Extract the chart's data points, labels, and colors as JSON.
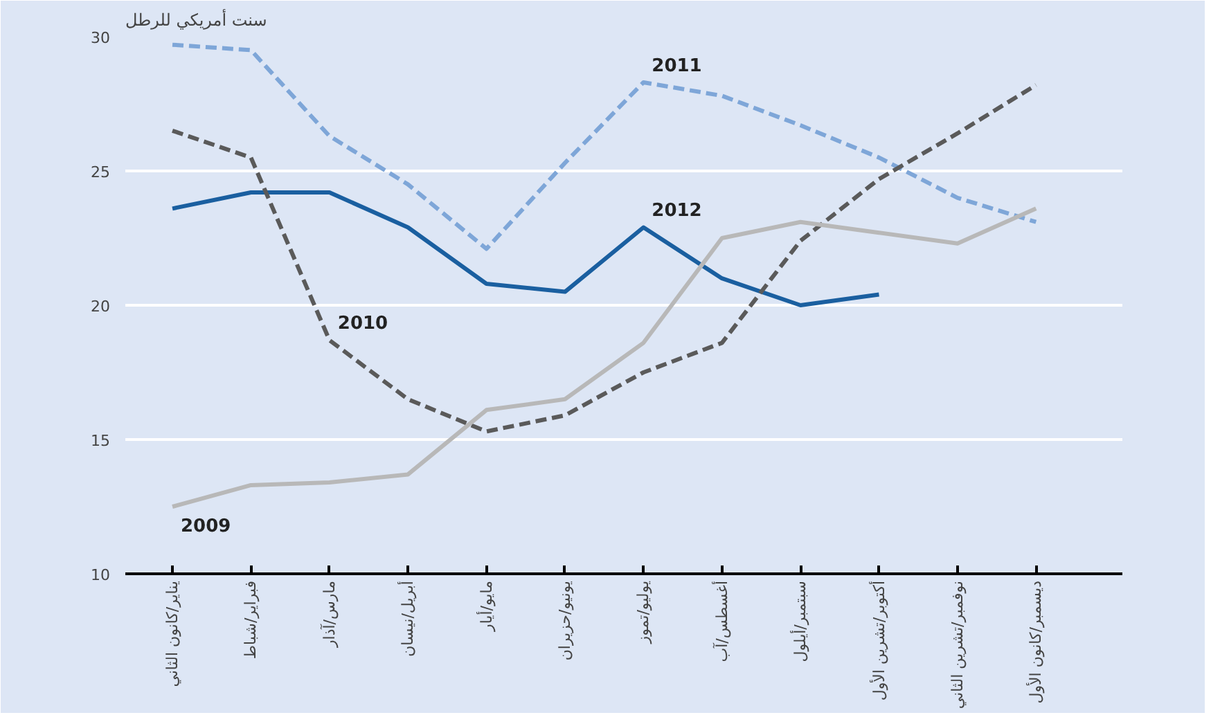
{
  "chart_data": {
    "type": "line",
    "ylabel": "سنت أمريكي للرطل",
    "categories": [
      "يناير/كانون الثاني",
      "فبراير/شباط",
      "مارس/آذار",
      "أبريل/نيسان",
      "مايو/أيار",
      "يونيو/حزيران",
      "يوليو/تموز",
      "أغسطس/آب",
      "سبتمبر/أيلول",
      "أكتوبر/تشرين الأول",
      "نوفمبر/تشرين الثاني",
      "ديسمبر/كانون الأول"
    ],
    "series": [
      {
        "name": "2011",
        "color": "#7ea6d8",
        "line_style": "dashed",
        "values": [
          29.7,
          29.5,
          26.3,
          24.5,
          22.1,
          25.3,
          28.3,
          27.8,
          26.7,
          25.5,
          24.0,
          23.1
        ]
      },
      {
        "name": "2012",
        "color": "#1a5fa0",
        "line_style": "solid",
        "values": [
          23.6,
          24.2,
          24.2,
          22.9,
          20.8,
          20.5,
          22.9,
          21.0,
          20.0,
          20.4,
          null,
          null
        ]
      },
      {
        "name": "2010",
        "color": "#5a5a5a",
        "line_style": "dashed",
        "values": [
          26.5,
          25.5,
          18.7,
          16.5,
          15.3,
          15.9,
          17.5,
          18.6,
          22.4,
          24.7,
          26.4,
          28.2
        ]
      },
      {
        "name": "2009",
        "color": "#b8b8b8",
        "line_style": "solid",
        "values": [
          12.5,
          13.3,
          13.4,
          13.7,
          16.1,
          16.5,
          18.6,
          22.5,
          23.1,
          22.7,
          22.3,
          23.6
        ]
      }
    ],
    "ylim": [
      10,
      30
    ],
    "yticks": [
      10,
      15,
      20,
      25,
      30
    ],
    "grid": "y",
    "marker": "none"
  }
}
